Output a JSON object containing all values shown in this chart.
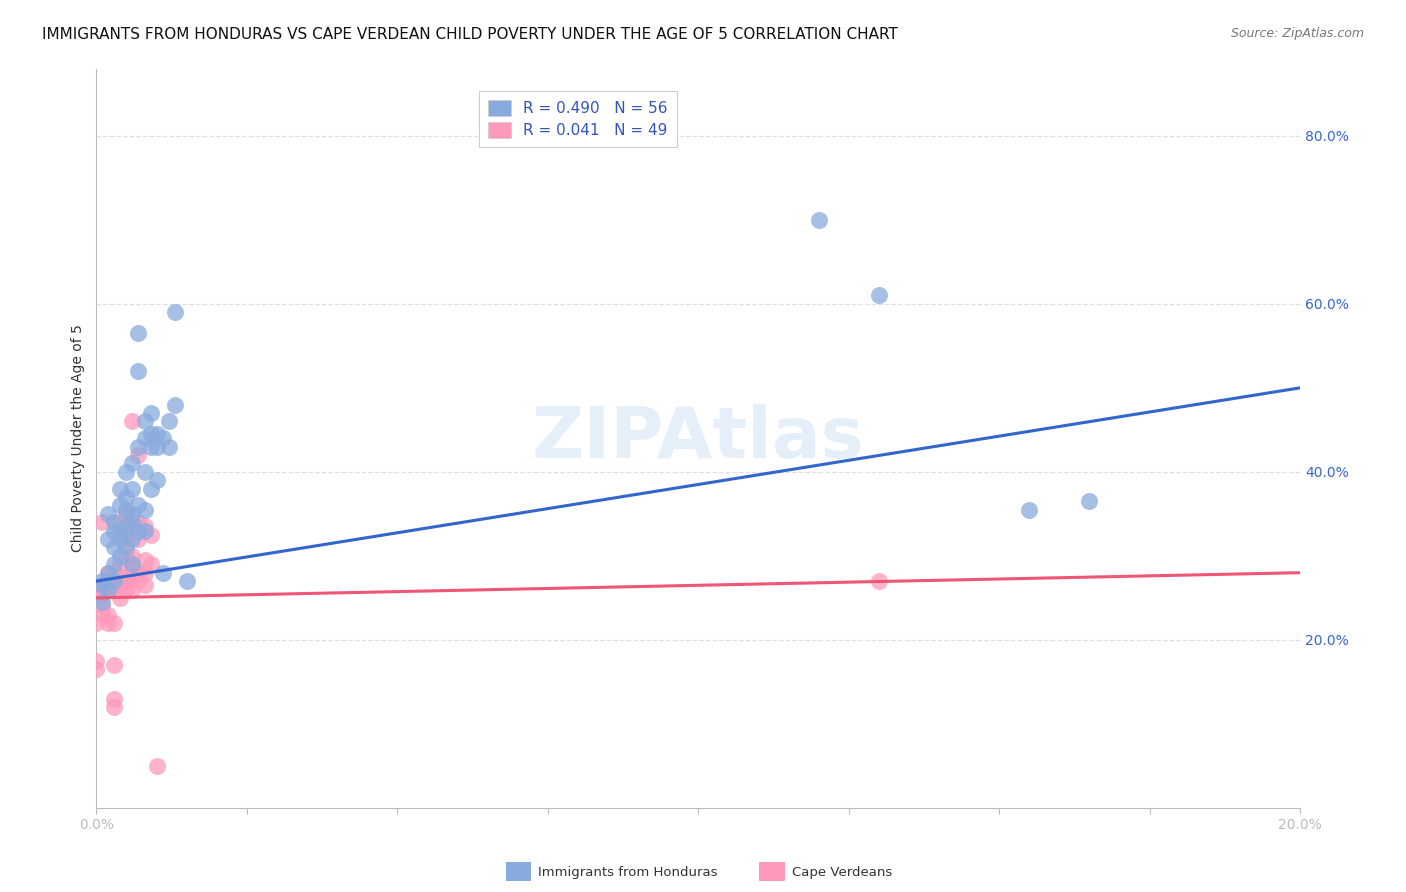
{
  "title": "IMMIGRANTS FROM HONDURAS VS CAPE VERDEAN CHILD POVERTY UNDER THE AGE OF 5 CORRELATION CHART",
  "source": "Source: ZipAtlas.com",
  "ylabel": "Child Poverty Under the Age of 5",
  "y_ticks": [
    0.2,
    0.4,
    0.6,
    0.8
  ],
  "y_tick_labels": [
    "20.0%",
    "40.0%",
    "60.0%",
    "80.0%"
  ],
  "x_range": [
    0.0,
    0.2
  ],
  "y_range": [
    0.0,
    0.88
  ],
  "legend_blue_r": "R = 0.490",
  "legend_blue_n": "N = 56",
  "legend_pink_r": "R = 0.041",
  "legend_pink_n": "N = 49",
  "blue_color": "#88AADD",
  "pink_color": "#FF99BB",
  "blue_line_color": "#3366CC",
  "pink_line_color": "#EE5577",
  "legend_text_color": "#3355BB",
  "blue_scatter": [
    [
      0.001,
      0.265
    ],
    [
      0.001,
      0.245
    ],
    [
      0.001,
      0.27
    ],
    [
      0.002,
      0.28
    ],
    [
      0.002,
      0.26
    ],
    [
      0.002,
      0.35
    ],
    [
      0.002,
      0.32
    ],
    [
      0.003,
      0.29
    ],
    [
      0.003,
      0.31
    ],
    [
      0.003,
      0.33
    ],
    [
      0.003,
      0.27
    ],
    [
      0.003,
      0.34
    ],
    [
      0.004,
      0.3
    ],
    [
      0.004,
      0.32
    ],
    [
      0.004,
      0.33
    ],
    [
      0.004,
      0.38
    ],
    [
      0.004,
      0.36
    ],
    [
      0.005,
      0.31
    ],
    [
      0.005,
      0.335
    ],
    [
      0.005,
      0.37
    ],
    [
      0.005,
      0.355
    ],
    [
      0.005,
      0.4
    ],
    [
      0.006,
      0.29
    ],
    [
      0.006,
      0.32
    ],
    [
      0.006,
      0.35
    ],
    [
      0.006,
      0.38
    ],
    [
      0.006,
      0.41
    ],
    [
      0.006,
      0.34
    ],
    [
      0.007,
      0.33
    ],
    [
      0.007,
      0.36
    ],
    [
      0.007,
      0.43
    ],
    [
      0.007,
      0.52
    ],
    [
      0.007,
      0.565
    ],
    [
      0.008,
      0.33
    ],
    [
      0.008,
      0.355
    ],
    [
      0.008,
      0.4
    ],
    [
      0.008,
      0.44
    ],
    [
      0.008,
      0.46
    ],
    [
      0.009,
      0.38
    ],
    [
      0.009,
      0.43
    ],
    [
      0.009,
      0.445
    ],
    [
      0.009,
      0.47
    ],
    [
      0.01,
      0.43
    ],
    [
      0.01,
      0.445
    ],
    [
      0.01,
      0.39
    ],
    [
      0.011,
      0.44
    ],
    [
      0.011,
      0.28
    ],
    [
      0.012,
      0.43
    ],
    [
      0.012,
      0.46
    ],
    [
      0.013,
      0.48
    ],
    [
      0.013,
      0.59
    ],
    [
      0.015,
      0.27
    ],
    [
      0.12,
      0.7
    ],
    [
      0.13,
      0.61
    ],
    [
      0.155,
      0.355
    ],
    [
      0.165,
      0.365
    ]
  ],
  "pink_scatter": [
    [
      0.0,
      0.165
    ],
    [
      0.0,
      0.175
    ],
    [
      0.0,
      0.22
    ],
    [
      0.001,
      0.255
    ],
    [
      0.001,
      0.24
    ],
    [
      0.001,
      0.23
    ],
    [
      0.001,
      0.34
    ],
    [
      0.001,
      0.255
    ],
    [
      0.001,
      0.265
    ],
    [
      0.002,
      0.22
    ],
    [
      0.002,
      0.23
    ],
    [
      0.002,
      0.26
    ],
    [
      0.002,
      0.27
    ],
    [
      0.002,
      0.28
    ],
    [
      0.003,
      0.22
    ],
    [
      0.003,
      0.13
    ],
    [
      0.003,
      0.26
    ],
    [
      0.003,
      0.28
    ],
    [
      0.003,
      0.12
    ],
    [
      0.003,
      0.17
    ],
    [
      0.004,
      0.25
    ],
    [
      0.004,
      0.265
    ],
    [
      0.004,
      0.275
    ],
    [
      0.004,
      0.29
    ],
    [
      0.004,
      0.34
    ],
    [
      0.005,
      0.26
    ],
    [
      0.005,
      0.27
    ],
    [
      0.005,
      0.3
    ],
    [
      0.005,
      0.32
    ],
    [
      0.005,
      0.33
    ],
    [
      0.005,
      0.35
    ],
    [
      0.006,
      0.26
    ],
    [
      0.006,
      0.275
    ],
    [
      0.006,
      0.285
    ],
    [
      0.006,
      0.3
    ],
    [
      0.006,
      0.46
    ],
    [
      0.007,
      0.27
    ],
    [
      0.007,
      0.28
    ],
    [
      0.007,
      0.32
    ],
    [
      0.007,
      0.34
    ],
    [
      0.007,
      0.42
    ],
    [
      0.008,
      0.265
    ],
    [
      0.008,
      0.28
    ],
    [
      0.008,
      0.295
    ],
    [
      0.008,
      0.335
    ],
    [
      0.009,
      0.29
    ],
    [
      0.009,
      0.325
    ],
    [
      0.01,
      0.05
    ],
    [
      0.13,
      0.27
    ]
  ],
  "blue_line_x": [
    0.0,
    0.2
  ],
  "blue_line_y": [
    0.27,
    0.5
  ],
  "pink_line_x": [
    0.0,
    0.2
  ],
  "pink_line_y": [
    0.25,
    0.28
  ],
  "background_color": "#FFFFFF",
  "grid_color": "#DDDDEE",
  "title_fontsize": 11,
  "source_fontsize": 9,
  "axis_label_fontsize": 10,
  "tick_fontsize": 10
}
